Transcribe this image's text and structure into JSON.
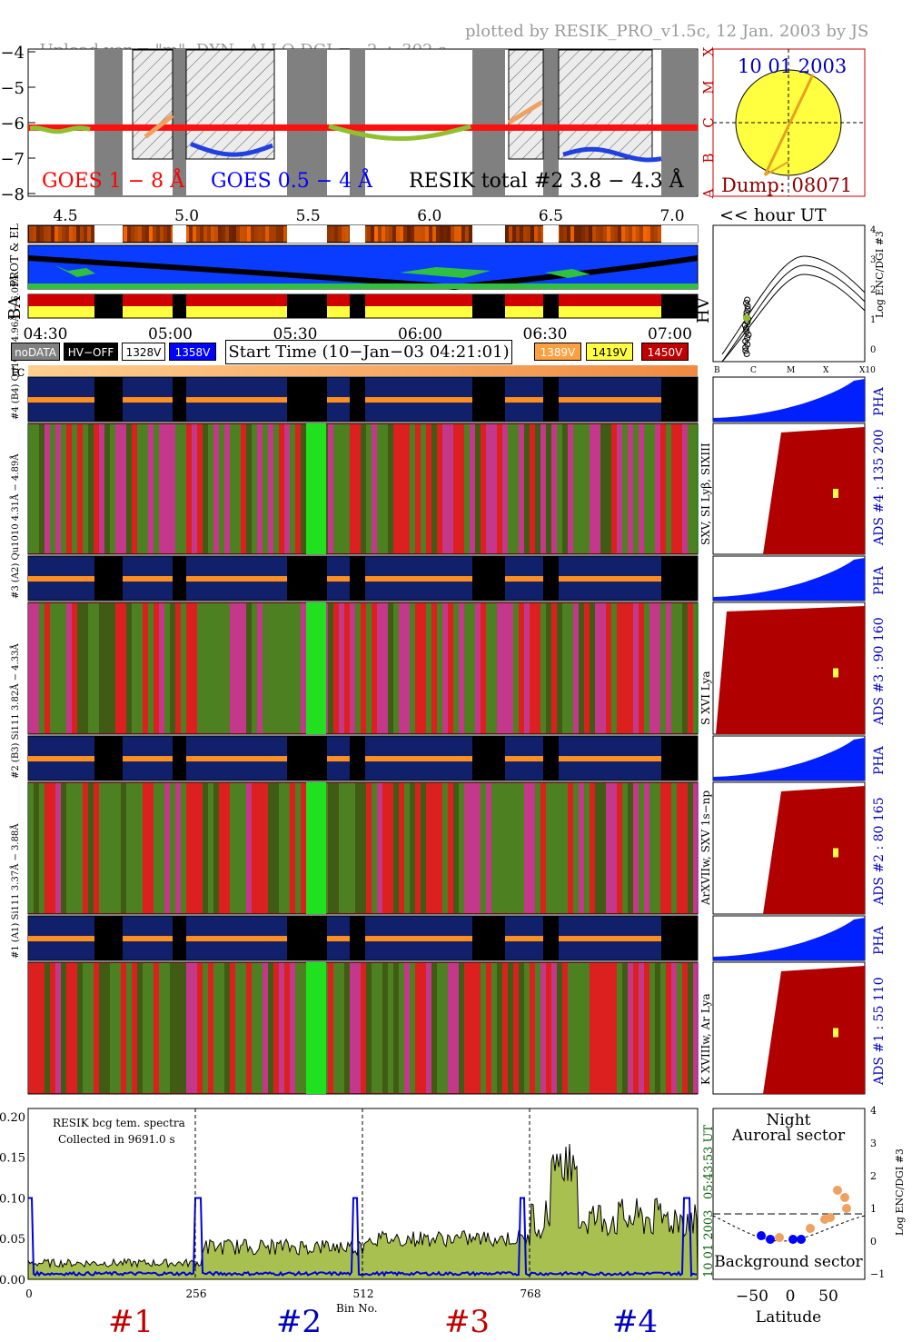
{
  "header": {
    "left": "Upload ver = \"m\", DYN−ALLO DGI =   2 ÷ 302 s",
    "right": "plotted by RESIK_PRO_v1.5c, 12 Jan. 2003 by JS"
  },
  "goes_panel": {
    "yticks": [
      "−4",
      "−5",
      "−6",
      "−7",
      "−8"
    ],
    "class_labels": [
      "X",
      "M",
      "C",
      "B",
      "A"
    ],
    "label_goes_long": "GOES 1 − 8 Å",
    "label_goes_short": "GOES 0.5 − 4 Å",
    "label_resik": "RESIK total #2  3.8 − 4.3 Å",
    "colors": {
      "goes_long": "#ff0000",
      "goes_short": "#0000ff",
      "resik": "#000000",
      "shade": "#808080"
    }
  },
  "sun_panel": {
    "date": "10 01 2003",
    "dump": "Dump: 08071",
    "sun_color": "#ffff40",
    "arrow_color": "#e8a020"
  },
  "hour_axis": {
    "ticks": [
      "4.5",
      "5.0",
      "5.5",
      "6.0",
      "6.5",
      "7.0"
    ],
    "label": "<< hour UT",
    "time_ticks": [
      "04:30",
      "05:00",
      "05:30",
      "06:00",
      "06:30",
      "07:00"
    ]
  },
  "side_labels": {
    "prot_el": "PROT & EL",
    "ba": "BA",
    "hv": "HV",
    "tc": "tc"
  },
  "hv_panel": {
    "y_axis_label": "Log ENC/DGI #3",
    "yticks": [
      "4",
      "3",
      "2",
      "1",
      "0"
    ],
    "xticks": [
      "B",
      "C",
      "M",
      "X",
      "X10"
    ]
  },
  "legend": {
    "items": [
      {
        "label": "noDATA",
        "bg": "#808080",
        "fg": "#ffffff"
      },
      {
        "label": "HV−OFF",
        "bg": "#000000",
        "fg": "#ffffff"
      },
      {
        "label": "1328V",
        "bg": "#ffffff",
        "fg": "#000000"
      },
      {
        "label": "1358V",
        "bg": "#0000ff",
        "fg": "#ffffff"
      },
      {
        "label": "1389V",
        "bg": "#ffa040",
        "fg": "#ffffff"
      },
      {
        "label": "1419V",
        "bg": "#ffff40",
        "fg": "#000000"
      },
      {
        "label": "1450V",
        "bg": "#c00000",
        "fg": "#ffffff"
      }
    ],
    "start_time": "Start Time (10−Jan−03 04:21:01)"
  },
  "channels": [
    {
      "pha_label": "#4 (B4) Qu1010 4.96Å − 6.09Å",
      "lines": "SXV, SI Lyβ, SIXIII",
      "ads": "ADS #4 :   135 200"
    },
    {
      "pha_label": "#3 (A2) Qu1010 4.31Å − 4.89Å",
      "lines": "S XVI Lya",
      "ads": "ADS #3 :   90 160"
    },
    {
      "pha_label": "#2 (B3) Si111 3.82Å − 4.33Å",
      "lines": "ArXVIIw, SXV 1s−np",
      "ads": "ADS #2 :   80 165"
    },
    {
      "pha_label": "#1 (A1) Si111 3.37Å − 3.88Å",
      "lines": "K XVIIIw, Ar Lya",
      "ads": "ADS #1 :   55 110"
    }
  ],
  "pha_label": "PHA",
  "bottom_spectrum": {
    "yticks": [
      "0.20",
      "0.15",
      "0.10",
      "0.05",
      "0.00"
    ],
    "xticks": [
      "0",
      "256",
      "512",
      "768"
    ],
    "xlabel": "Bin No.",
    "note1": "RESIK bcg tem. spectra",
    "note2": "Collected in  9691.0 s",
    "side_time": "05:43:53 UT",
    "side_date": "10 01 2003",
    "sections": [
      {
        "label": "#1",
        "color": "#c00000"
      },
      {
        "label": "#2",
        "color": "#0000c0"
      },
      {
        "label": "#3",
        "color": "#c00000"
      },
      {
        "label": "#4",
        "color": "#0000c0"
      }
    ]
  },
  "latitude_panel": {
    "title1": "Night",
    "title2": "Auroral sector",
    "bottom": "Background sector",
    "xlabel": "Latitude",
    "xticks": [
      "−50",
      "0",
      "50"
    ],
    "yticks": [
      "4",
      "3",
      "2",
      "1",
      "0",
      "−1"
    ],
    "ylabel": "Log ENC/DGI #3"
  }
}
